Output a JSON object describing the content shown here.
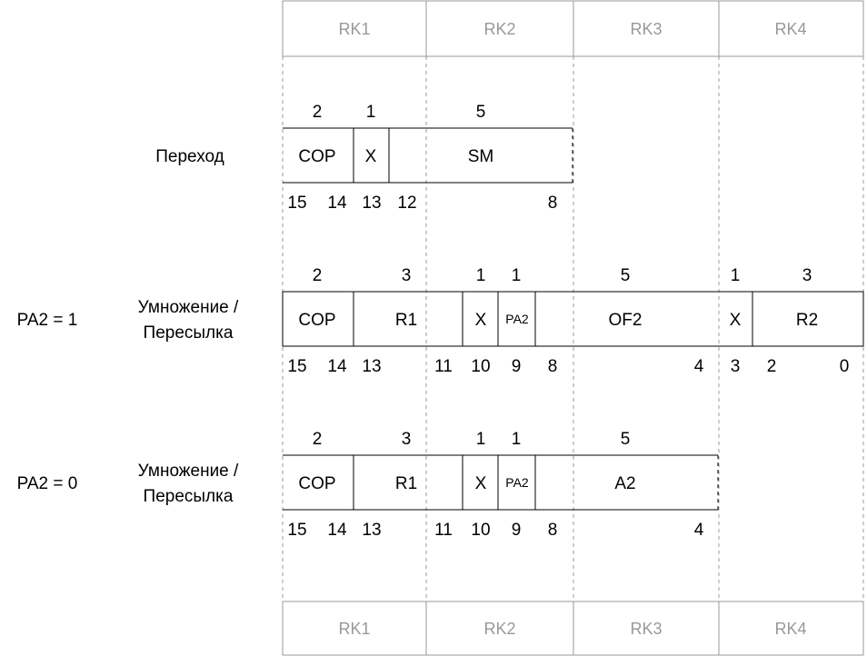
{
  "registers": {
    "top": [
      "RK1",
      "RK2",
      "RK3",
      "RK4"
    ],
    "bottom": [
      "RK1",
      "RK2",
      "RK3",
      "RK4"
    ]
  },
  "rows": [
    {
      "id": "jump",
      "condition": "",
      "title_lines": [
        "Переход"
      ],
      "widths": [
        "2",
        "1",
        "5"
      ],
      "fields": [
        "COP",
        "X",
        "SM"
      ],
      "bits": [
        "15",
        "14",
        "13",
        "12",
        "8"
      ]
    },
    {
      "id": "mul-pa2-1",
      "condition": "PA2 = 1",
      "title_lines": [
        "Умножение /",
        "Пересылка"
      ],
      "widths": [
        "2",
        "3",
        "1",
        "1",
        "5",
        "1",
        "3"
      ],
      "fields": [
        "COP",
        "R1",
        "X",
        "PA2",
        "OF2",
        "X",
        "R2"
      ],
      "bits": [
        "15",
        "14",
        "13",
        "11",
        "10",
        "9",
        "8",
        "4",
        "3",
        "2",
        "0"
      ]
    },
    {
      "id": "mul-pa2-0",
      "condition": "PA2 = 0",
      "title_lines": [
        "Умножение /",
        "Пересылка"
      ],
      "widths": [
        "2",
        "3",
        "1",
        "1",
        "5"
      ],
      "fields": [
        "COP",
        "R1",
        "X",
        "PA2",
        "A2"
      ],
      "bits": [
        "15",
        "14",
        "13",
        "11",
        "10",
        "9",
        "8",
        "4"
      ]
    }
  ]
}
